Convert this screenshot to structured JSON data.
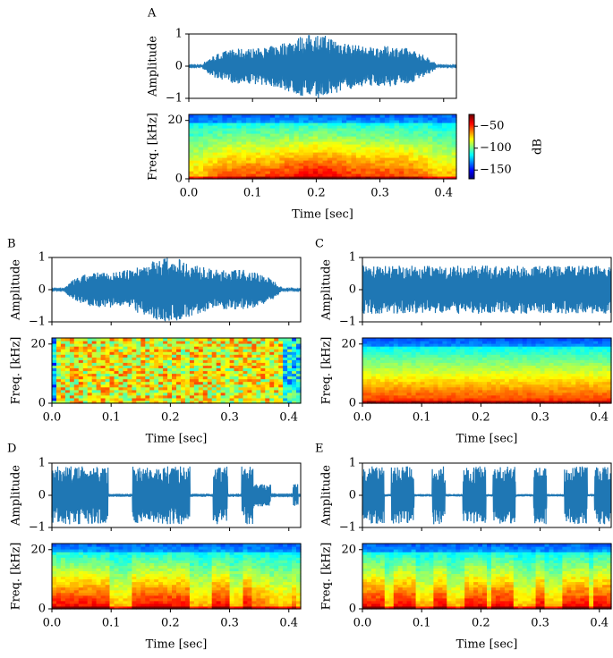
{
  "chart_data": [
    {
      "type": "waveform-spectrogram",
      "panel_label": "A",
      "waveform": {
        "ylabel": "Amplitude",
        "ylim": [
          -1,
          1
        ],
        "yticks": [
          {
            "value": -1,
            "label": "−1"
          },
          0,
          1
        ]
      },
      "spectrogram": {
        "ylabel": "Freq. [kHz]",
        "ylim": [
          0,
          22.05
        ],
        "yticks": [
          0,
          20
        ],
        "xlabel": "Time [sec]",
        "xlim": [
          0,
          0.42
        ],
        "xticks": [
          {
            "value": 0,
            "label": "0.0"
          },
          0.1,
          0.2,
          0.3,
          0.4
        ],
        "colorbar": {
          "label": "dB",
          "clim": [
            -170,
            -23
          ],
          "ticks": [
            {
              "value": -50,
              "label": "−50"
            },
            {
              "value": -100,
              "label": "−100"
            },
            {
              "value": -150,
              "label": "−150"
            }
          ]
        }
      }
    },
    {
      "type": "waveform-spectrogram",
      "panel_label": "B",
      "waveform": {
        "ylabel": "Amplitude",
        "ylim": [
          -1,
          1
        ],
        "yticks": [
          {
            "value": -1,
            "label": "−1"
          },
          0,
          1
        ]
      },
      "spectrogram": {
        "ylabel": "Freq. [kHz]",
        "ylim": [
          0,
          22.05
        ],
        "yticks": [
          0,
          20
        ],
        "xlabel": "Time [sec]",
        "xlim": [
          0,
          0.42
        ],
        "xticks": [
          {
            "value": 0,
            "label": "0.0"
          },
          0.1,
          0.2,
          0.3,
          0.4
        ]
      }
    },
    {
      "type": "waveform-spectrogram",
      "panel_label": "C",
      "waveform": {
        "ylabel": "Amplitude",
        "ylim": [
          -1,
          1
        ],
        "yticks": [
          {
            "value": -1,
            "label": "−1"
          },
          0,
          1
        ]
      },
      "spectrogram": {
        "ylabel": "Freq. [kHz]",
        "ylim": [
          0,
          22.05
        ],
        "yticks": [
          0,
          20
        ],
        "xlabel": "Time [sec]",
        "xlim": [
          0,
          0.42
        ],
        "xticks": [
          {
            "value": 0,
            "label": "0.0"
          },
          0.1,
          0.2,
          0.3,
          0.4
        ]
      }
    },
    {
      "type": "waveform-spectrogram",
      "panel_label": "D",
      "waveform": {
        "ylabel": "Amplitude",
        "ylim": [
          -1,
          1
        ],
        "yticks": [
          {
            "value": -1,
            "label": "−1"
          },
          0,
          1
        ]
      },
      "spectrogram": {
        "ylabel": "Freq. [kHz]",
        "ylim": [
          0,
          22.05
        ],
        "yticks": [
          0,
          20
        ],
        "xlabel": "Time [sec]",
        "xlim": [
          0,
          0.42
        ],
        "xticks": [
          {
            "value": 0,
            "label": "0.0"
          },
          0.1,
          0.2,
          0.3,
          0.4
        ]
      }
    },
    {
      "type": "waveform-spectrogram",
      "panel_label": "E",
      "waveform": {
        "ylabel": "Amplitude",
        "ylim": [
          -1,
          1
        ],
        "yticks": [
          {
            "value": -1,
            "label": "−1"
          },
          0,
          1
        ]
      },
      "spectrogram": {
        "ylabel": "Freq. [kHz]",
        "ylim": [
          0,
          22.05
        ],
        "yticks": [
          0,
          20
        ],
        "xlabel": "Time [sec]",
        "xlim": [
          0,
          0.42
        ],
        "xticks": [
          {
            "value": 0,
            "label": "0.0"
          },
          0.1,
          0.2,
          0.3,
          0.4
        ]
      }
    }
  ]
}
